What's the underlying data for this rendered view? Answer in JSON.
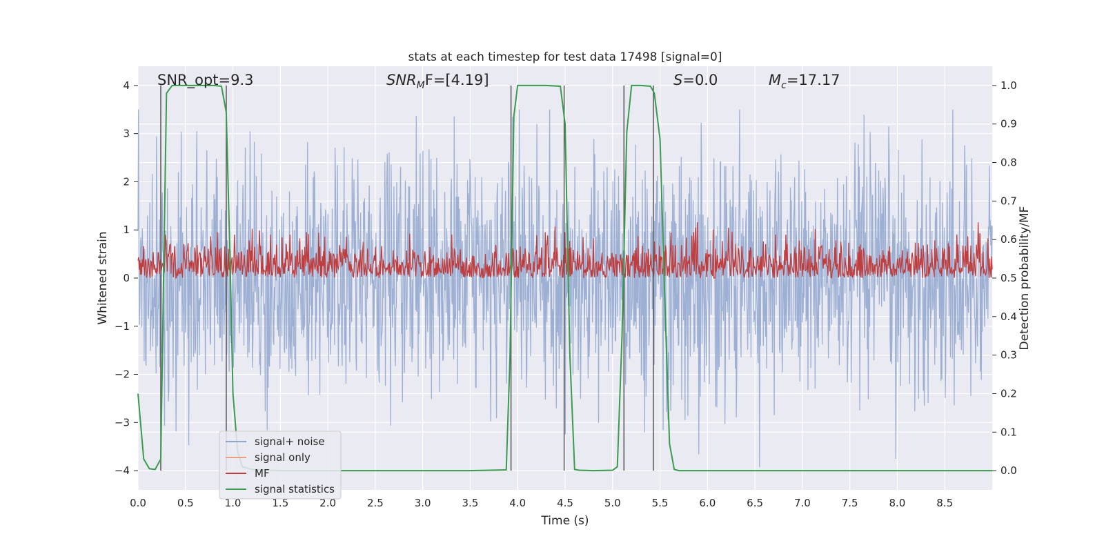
{
  "chart_data": {
    "type": "line",
    "title": "stats at each timestep for test data 17498 [signal=0]",
    "xlabel": "Time (s)",
    "ylabel": "Whitened strain",
    "y2label": "Detection probability/MF",
    "xlim": [
      0,
      9
    ],
    "ylim": [
      -4.4,
      4.4
    ],
    "y2lim": [
      -0.05,
      1.05
    ],
    "grid": true,
    "xticks": [
      "0.0",
      "0.5",
      "1.0",
      "1.5",
      "2.0",
      "2.5",
      "3.0",
      "3.5",
      "4.0",
      "4.5",
      "5.0",
      "5.5",
      "6.0",
      "6.5",
      "7.0",
      "7.5",
      "8.0",
      "8.5"
    ],
    "yticks": [
      "4",
      "3",
      "2",
      "1",
      "0",
      "−1",
      "−2",
      "−3",
      "−4"
    ],
    "y2ticks": [
      "1.0",
      "0.9",
      "0.8",
      "0.7",
      "0.6",
      "0.5",
      "0.4",
      "0.3",
      "0.2",
      "0.1",
      "0.0"
    ],
    "annotations": {
      "snr_opt": "SNR_opt=9.3",
      "snr_mf_sym": "SNR",
      "snr_mf_sub": "M",
      "snr_mf_rest": "F=[4.19]",
      "s_sym": "S",
      "s_rest": "=0.0",
      "mc_sym": "M",
      "mc_sub": "c",
      "mc_rest": "=17.17"
    },
    "legend": {
      "position": "lower-left",
      "entries": [
        {
          "label": "signal+ noise",
          "color": "#8fa6cf"
        },
        {
          "label": "signal only",
          "color": "#e8a07f"
        },
        {
          "label": "MF",
          "color": "#c03d3e"
        },
        {
          "label": "signal statistics",
          "color": "#3a9a4f"
        }
      ]
    },
    "series": [
      {
        "name": "signal+ noise",
        "axis": "left",
        "color": "#8fa6cf",
        "description": "white noise, envelope approx -2.5..+2.5, peaks to about ±4"
      },
      {
        "name": "signal only",
        "axis": "left",
        "color": "#e8a07f",
        "values": []
      },
      {
        "name": "MF",
        "axis": "right",
        "color": "#c03d3e",
        "range": [
          0.5,
          0.63
        ]
      },
      {
        "name": "signal statistics",
        "axis": "right",
        "color": "#3a9a4f",
        "x": [
          0.0,
          0.06,
          0.12,
          0.18,
          0.24,
          0.3,
          0.36,
          0.42,
          0.5,
          0.6,
          0.7,
          0.8,
          0.88,
          0.93,
          0.97,
          1.0,
          1.05,
          1.1,
          1.2,
          1.5,
          2.0,
          2.5,
          3.0,
          3.5,
          3.88,
          3.92,
          3.96,
          4.0,
          4.1,
          4.3,
          4.45,
          4.5,
          4.55,
          4.6,
          4.65,
          4.8,
          5.0,
          5.05,
          5.1,
          5.15,
          5.2,
          5.25,
          5.3,
          5.4,
          5.44,
          5.5,
          5.55,
          5.6,
          5.65,
          5.7,
          5.8,
          6.0,
          7.0,
          8.0,
          9.0
        ],
        "values": [
          0.2,
          0.03,
          0.005,
          0.003,
          0.03,
          0.98,
          1.0,
          1.0,
          1.0,
          1.0,
          1.0,
          1.0,
          0.998,
          0.93,
          0.55,
          0.2,
          0.05,
          0.01,
          0.003,
          0.0,
          0.0,
          0.0,
          0.0,
          0.0,
          0.002,
          0.3,
          0.92,
          1.0,
          1.0,
          1.0,
          0.998,
          0.9,
          0.3,
          0.003,
          0.001,
          0.0,
          0.001,
          0.01,
          0.35,
          0.88,
          1.0,
          1.0,
          1.0,
          0.998,
          0.98,
          0.86,
          0.45,
          0.07,
          0.003,
          0.0,
          0.0,
          0.0,
          0.0,
          0.0,
          0.0
        ]
      }
    ],
    "vertical_markers": [
      {
        "x": 0.24,
        "from": -4.0,
        "to": 4.0
      },
      {
        "x": 0.93,
        "from": -4.0,
        "to": 4.0
      },
      {
        "x": 3.93,
        "from": -4.0,
        "to": 4.0
      },
      {
        "x": 4.49,
        "from": -4.0,
        "to": 4.0
      },
      {
        "x": 5.12,
        "from": -4.0,
        "to": 4.0
      },
      {
        "x": 5.43,
        "from": -4.0,
        "to": 4.0
      }
    ]
  }
}
